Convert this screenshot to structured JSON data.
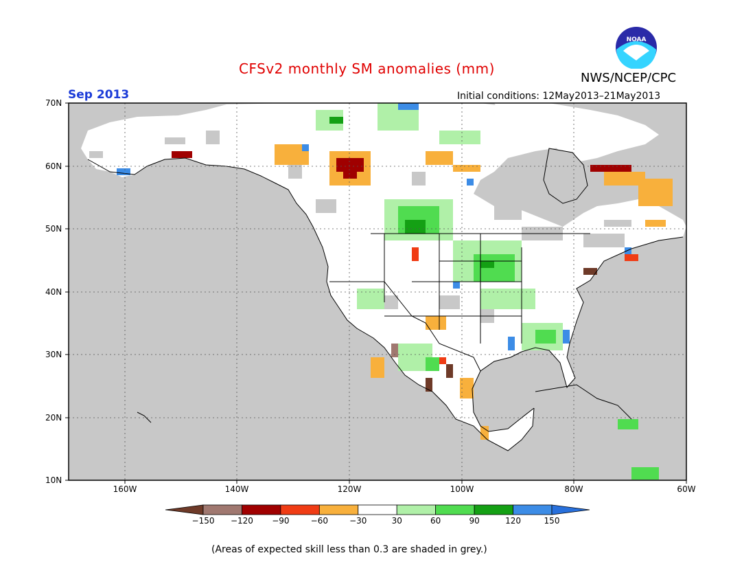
{
  "title": "CFSv2 monthly SM anomalies (mm)",
  "valid_month": "Sep 2013",
  "initial_conditions": "Initial conditions: 12May2013–21May2013",
  "agency": "NWS/NCEP/CPC",
  "logo_text": "NOAA",
  "lat_labels": [
    "70N",
    "60N",
    "50N",
    "40N",
    "30N",
    "20N",
    "10N"
  ],
  "lon_labels": [
    "160W",
    "140W",
    "120W",
    "100W",
    "80W",
    "60W"
  ],
  "colorbar": {
    "ticks": [
      "−150",
      "−120",
      "−90",
      "−60",
      "−30",
      "30",
      "60",
      "90",
      "120",
      "150"
    ],
    "colors": [
      "#6e3a28",
      "#a07870",
      "#a00000",
      "#f03c14",
      "#f8b03c",
      "#ffffff",
      "#b0f0a8",
      "#50dc50",
      "#14a014",
      "#3c8ce6",
      "#2870dc"
    ]
  },
  "colors": {
    "land_grey": "#c8c8c8",
    "border": "#000000"
  },
  "footnote": "(Areas of expected skill less than 0.3 are shaded in grey.)"
}
